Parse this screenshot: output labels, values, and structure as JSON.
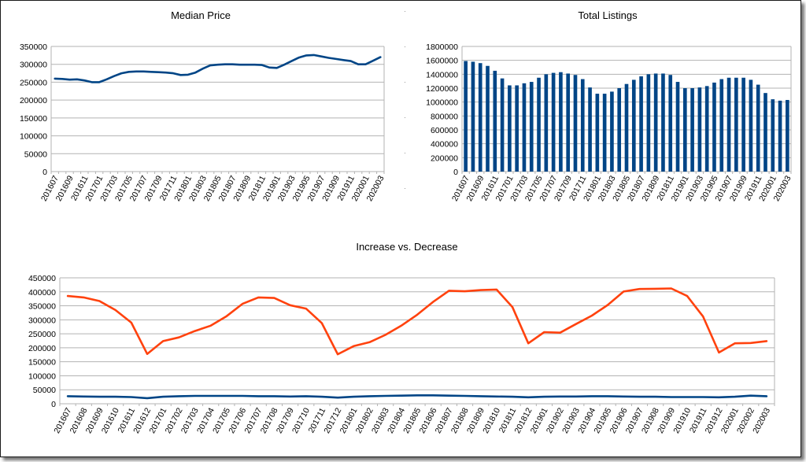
{
  "chart_data": [
    {
      "type": "line",
      "title": "Median Price",
      "ylim": [
        0,
        350000
      ],
      "yticks": [
        0,
        50000,
        100000,
        150000,
        200000,
        250000,
        300000,
        350000
      ],
      "grid": true,
      "legend": "none",
      "line_color": "#004586",
      "x": [
        "201607",
        "201608",
        "201609",
        "201610",
        "201611",
        "201612",
        "201701",
        "201702",
        "201703",
        "201704",
        "201705",
        "201706",
        "201707",
        "201708",
        "201709",
        "201710",
        "201711",
        "201712",
        "201801",
        "201802",
        "201803",
        "201804",
        "201805",
        "201806",
        "201807",
        "201808",
        "201809",
        "201810",
        "201811",
        "201812",
        "201901",
        "201902",
        "201903",
        "201904",
        "201905",
        "201906",
        "201907",
        "201908",
        "201909",
        "201910",
        "201911",
        "201912",
        "202001",
        "202002",
        "202003"
      ],
      "xtick_labels": [
        "201607",
        "201609",
        "201611",
        "201701",
        "201703",
        "201705",
        "201707",
        "201709",
        "201711",
        "201801",
        "201803",
        "201805",
        "201807",
        "201809",
        "201811",
        "201901",
        "201903",
        "201905",
        "201907",
        "201909",
        "201911",
        "202001",
        "202003"
      ],
      "values": [
        260000,
        259000,
        257000,
        258000,
        255000,
        250000,
        250000,
        258000,
        267000,
        275000,
        279000,
        280000,
        280000,
        279000,
        278000,
        277000,
        275000,
        270000,
        271000,
        277000,
        288000,
        297000,
        299000,
        300000,
        300000,
        299000,
        299000,
        299000,
        298000,
        291000,
        290000,
        299000,
        309000,
        319000,
        325000,
        326000,
        322000,
        318000,
        315000,
        312000,
        309000,
        300000,
        300000,
        310000,
        320000
      ]
    },
    {
      "type": "bar",
      "title": "Total Listings",
      "ylim": [
        0,
        1800000
      ],
      "yticks": [
        0,
        200000,
        400000,
        600000,
        800000,
        1000000,
        1200000,
        1400000,
        1600000,
        1800000
      ],
      "grid": true,
      "legend": "none",
      "bar_color": "#004586",
      "categories": [
        "201607",
        "201608",
        "201609",
        "201610",
        "201611",
        "201612",
        "201701",
        "201702",
        "201703",
        "201704",
        "201705",
        "201706",
        "201707",
        "201708",
        "201709",
        "201710",
        "201711",
        "201712",
        "201801",
        "201802",
        "201803",
        "201804",
        "201805",
        "201806",
        "201807",
        "201808",
        "201809",
        "201810",
        "201811",
        "201812",
        "201901",
        "201902",
        "201903",
        "201904",
        "201905",
        "201906",
        "201907",
        "201908",
        "201909",
        "201910",
        "201911",
        "201912",
        "202001",
        "202002",
        "202003"
      ],
      "xtick_labels": [
        "201607",
        "201609",
        "201611",
        "201701",
        "201703",
        "201705",
        "201707",
        "201709",
        "201711",
        "201801",
        "201803",
        "201805",
        "201807",
        "201809",
        "201811",
        "201901",
        "201903",
        "201905",
        "201907",
        "201909",
        "201911",
        "202001",
        "202003"
      ],
      "values": [
        1590000,
        1580000,
        1560000,
        1520000,
        1450000,
        1340000,
        1240000,
        1240000,
        1270000,
        1290000,
        1350000,
        1400000,
        1420000,
        1430000,
        1410000,
        1390000,
        1330000,
        1210000,
        1120000,
        1120000,
        1150000,
        1200000,
        1260000,
        1320000,
        1370000,
        1400000,
        1410000,
        1410000,
        1390000,
        1290000,
        1200000,
        1200000,
        1210000,
        1230000,
        1280000,
        1330000,
        1350000,
        1350000,
        1350000,
        1320000,
        1250000,
        1130000,
        1040000,
        1020000,
        1030000
      ]
    },
    {
      "type": "line",
      "title": "Increase vs. Decrease",
      "ylim": [
        0,
        450000
      ],
      "yticks": [
        0,
        50000,
        100000,
        150000,
        200000,
        250000,
        300000,
        350000,
        400000,
        450000
      ],
      "grid": true,
      "legend": "none",
      "x": [
        "201607",
        "201608",
        "201609",
        "201610",
        "201611",
        "201612",
        "201701",
        "201702",
        "201703",
        "201704",
        "201705",
        "201706",
        "201707",
        "201708",
        "201709",
        "201710",
        "201711",
        "201712",
        "201801",
        "201802",
        "201803",
        "201804",
        "201805",
        "201806",
        "201807",
        "201808",
        "201809",
        "201810",
        "201811",
        "201812",
        "201901",
        "201902",
        "201903",
        "201904",
        "201905",
        "201906",
        "201907",
        "201908",
        "201909",
        "201910",
        "201911",
        "201912",
        "202001",
        "202002",
        "202003"
      ],
      "series": [
        {
          "color": "#ff420e",
          "values": [
            385000,
            380000,
            367000,
            335000,
            290000,
            178000,
            224000,
            237000,
            260000,
            279000,
            313000,
            357000,
            380000,
            378000,
            352000,
            340000,
            288000,
            177000,
            206000,
            220000,
            246000,
            279000,
            318000,
            364000,
            404000,
            402000,
            406000,
            408000,
            345000,
            216000,
            256000,
            254000,
            285000,
            315000,
            353000,
            401000,
            410000,
            411000,
            412000,
            385000,
            312000,
            183000,
            216000,
            217000,
            224000
          ]
        },
        {
          "color": "#004586",
          "values": [
            27000,
            26000,
            25000,
            25000,
            24000,
            20000,
            25000,
            27000,
            28000,
            28000,
            28000,
            28000,
            27000,
            27000,
            26000,
            27000,
            25000,
            22000,
            25000,
            27000,
            28000,
            29000,
            30000,
            30000,
            29000,
            28000,
            27000,
            26000,
            25000,
            23000,
            25000,
            26000,
            26000,
            27000,
            27000,
            26000,
            25000,
            25000,
            24000,
            24000,
            24000,
            23000,
            25000,
            29000,
            27000
          ]
        }
      ]
    }
  ]
}
